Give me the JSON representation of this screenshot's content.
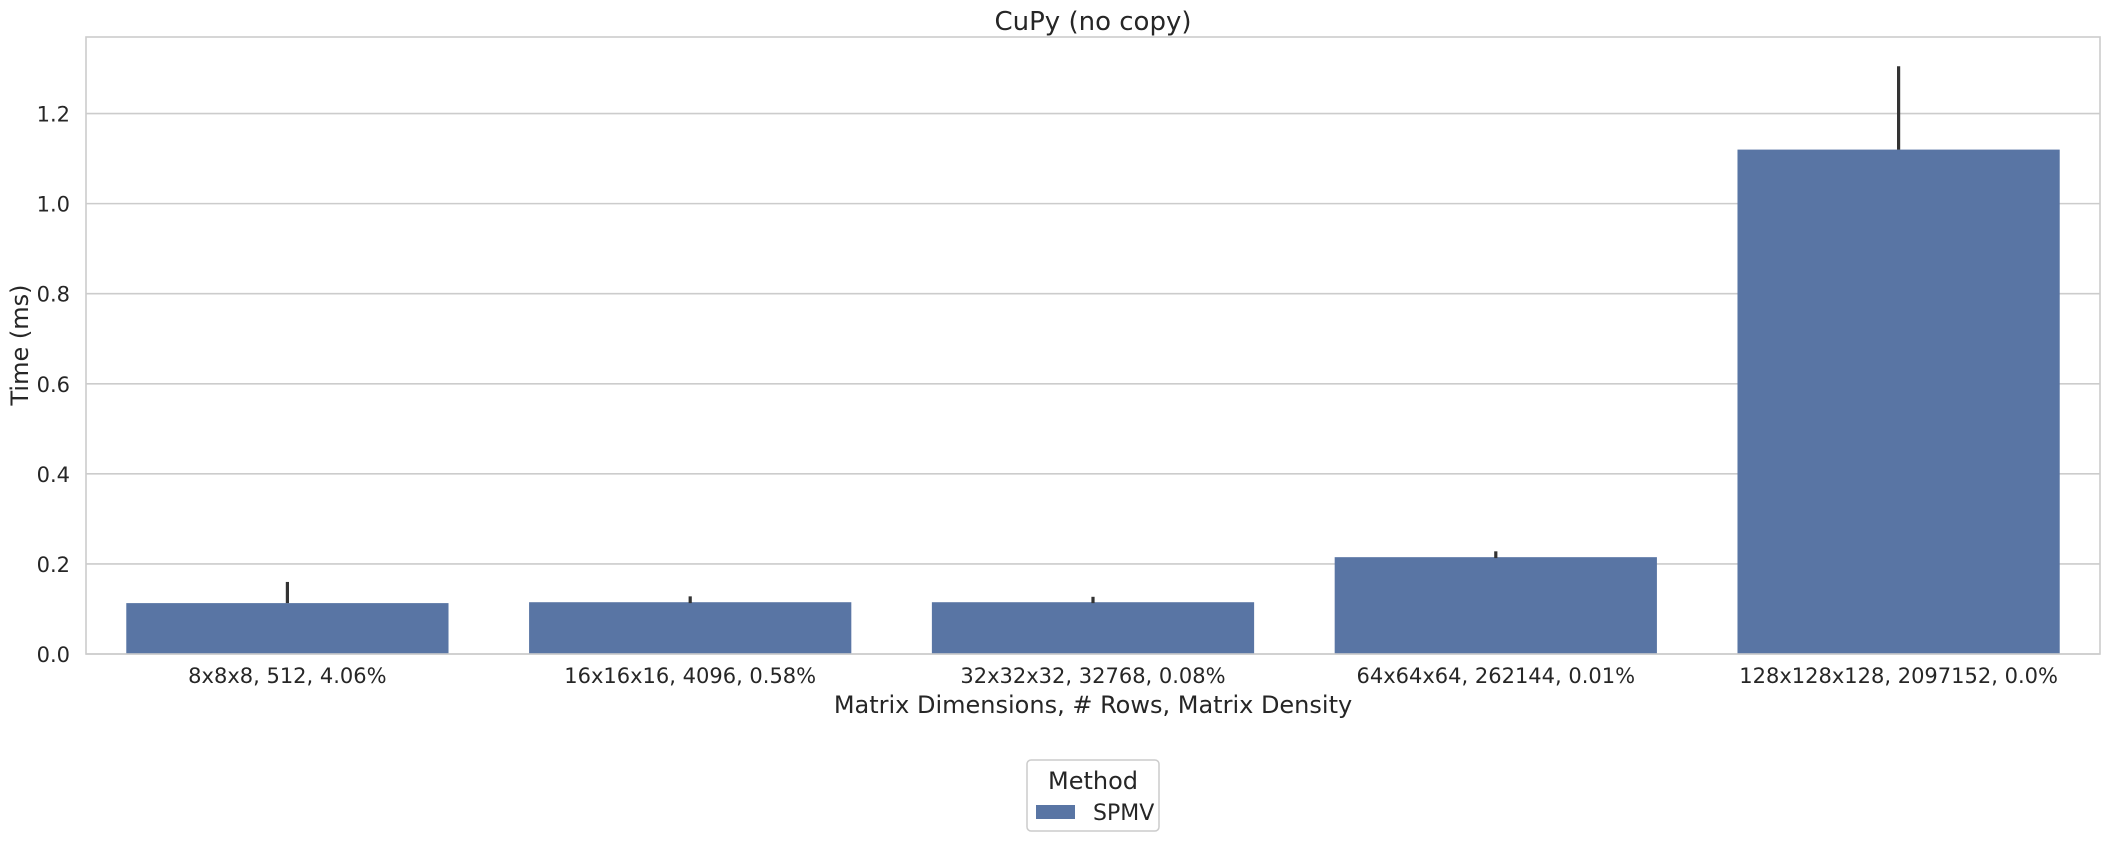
{
  "chart_data": {
    "type": "bar",
    "title": "CuPy (no copy)",
    "xlabel": "Matrix Dimensions, # Rows, Matrix Density",
    "ylabel": "Time (ms)",
    "categories": [
      "8x8x8, 512, 4.06%",
      "16x16x16, 4096, 0.58%",
      "32x32x32, 32768, 0.08%",
      "64x64x64, 262144, 0.01%",
      "128x128x128, 2097152, 0.0%"
    ],
    "series": [
      {
        "name": "SPMV",
        "values": [
          0.113,
          0.115,
          0.115,
          0.215,
          1.12
        ],
        "error_low": [
          0.113,
          0.113,
          0.113,
          0.213,
          1.12
        ],
        "error_high": [
          0.16,
          0.128,
          0.127,
          0.228,
          1.305
        ]
      }
    ],
    "ylim": [
      0,
      1.37
    ],
    "yticks": [
      0.0,
      0.2,
      0.4,
      0.6,
      0.8,
      1.0,
      1.2
    ],
    "ytick_labels": [
      "0.0",
      "0.2",
      "0.4",
      "0.6",
      "0.8",
      "1.0",
      "1.2"
    ],
    "grid": "horizontal",
    "legend": {
      "title": "Method",
      "placement": "bottom-center",
      "entries": [
        "SPMV"
      ]
    },
    "colors": {
      "bar": "#5975a4",
      "error": "#333333",
      "grid": "#cccccc",
      "spine": "#cccccc",
      "text": "#262626"
    }
  }
}
